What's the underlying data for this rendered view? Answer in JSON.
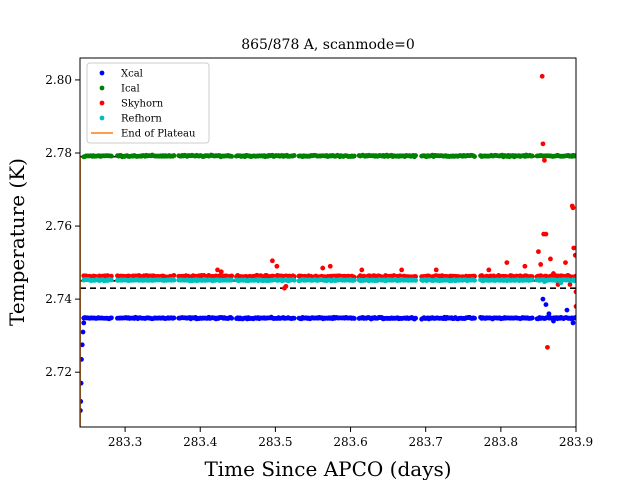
{
  "chart_data": {
    "type": "scatter",
    "title": "865/878 A, scanmode=0",
    "xlabel": "Time Since APCO (days)",
    "ylabel": "Temperature (K)",
    "xlim": [
      283.24,
      283.9
    ],
    "ylim": [
      2.705,
      2.806
    ],
    "xticks": [
      283.3,
      283.4,
      283.5,
      283.6,
      283.7,
      283.8,
      283.9
    ],
    "xtick_labels": [
      "283.3",
      "283.4",
      "283.5",
      "283.6",
      "283.7",
      "283.8",
      "283.9"
    ],
    "yticks": [
      2.72,
      2.74,
      2.76,
      2.78,
      2.8
    ],
    "ytick_labels": [
      "2.72",
      "2.74",
      "2.76",
      "2.78",
      "2.80"
    ],
    "grid": false,
    "legend_position": "top-left",
    "scan_gaps": [
      [
        283.283,
        283.289
      ],
      [
        283.365,
        283.37
      ],
      [
        283.442,
        283.448
      ],
      [
        283.526,
        283.531
      ],
      [
        283.605,
        283.611
      ],
      [
        283.687,
        283.693
      ],
      [
        283.766,
        283.772
      ],
      [
        283.842,
        283.847
      ]
    ],
    "reference_lines": [
      {
        "y": 2.779,
        "style": "dashed",
        "color": "#000000"
      },
      {
        "y": 2.745,
        "style": "dashed",
        "color": "#000000"
      },
      {
        "y": 2.743,
        "style": "dashed",
        "color": "#000000"
      }
    ],
    "series": [
      {
        "name": "Xcal",
        "color": "#0000ff",
        "baseline": 2.7348,
        "noise": 0.0003,
        "startup_points": [
          [
            283.2405,
            2.7095
          ],
          [
            283.241,
            2.712
          ],
          [
            283.2415,
            2.717
          ],
          [
            283.242,
            2.7235
          ],
          [
            283.243,
            2.7275
          ],
          [
            283.244,
            2.731
          ],
          [
            283.245,
            2.7335
          ]
        ],
        "outliers": [
          [
            283.856,
            2.74
          ],
          [
            283.86,
            2.7385
          ],
          [
            283.864,
            2.736
          ],
          [
            283.87,
            2.734
          ],
          [
            283.88,
            2.735
          ],
          [
            283.888,
            2.737
          ],
          [
            283.896,
            2.7335
          ],
          [
            283.9,
            2.735
          ]
        ]
      },
      {
        "name": "Ical",
        "color": "#008000",
        "baseline": 2.7792,
        "noise": 0.0003,
        "startup_points": [],
        "outliers": []
      },
      {
        "name": "Skyhorn",
        "color": "#ff0000",
        "baseline": 2.7462,
        "noise": 0.0004,
        "startup_points": [],
        "outliers": [
          [
            283.423,
            2.748
          ],
          [
            283.428,
            2.7475
          ],
          [
            283.496,
            2.7505
          ],
          [
            283.502,
            2.749
          ],
          [
            283.512,
            2.743
          ],
          [
            283.514,
            2.7435
          ],
          [
            283.563,
            2.7485
          ],
          [
            283.573,
            2.749
          ],
          [
            283.615,
            2.748
          ],
          [
            283.668,
            2.748
          ],
          [
            283.714,
            2.748
          ],
          [
            283.784,
            2.748
          ],
          [
            283.808,
            2.75
          ],
          [
            283.832,
            2.749
          ],
          [
            283.85,
            2.753
          ],
          [
            283.853,
            2.7495
          ],
          [
            283.855,
            2.801
          ],
          [
            283.856,
            2.7825
          ],
          [
            283.857,
            2.7578
          ],
          [
            283.858,
            2.778
          ],
          [
            283.86,
            2.7578
          ],
          [
            283.862,
            2.7268
          ],
          [
            283.866,
            2.751
          ],
          [
            283.87,
            2.747
          ],
          [
            283.876,
            2.744
          ],
          [
            283.886,
            2.75
          ],
          [
            283.889,
            2.7465
          ],
          [
            283.892,
            2.744
          ],
          [
            283.895,
            2.7655
          ],
          [
            283.896,
            2.765
          ],
          [
            283.897,
            2.754
          ],
          [
            283.899,
            2.752
          ],
          [
            283.9,
            2.742
          ],
          [
            283.9,
            2.738
          ]
        ]
      },
      {
        "name": "Refhorn",
        "color": "#00bfbf",
        "baseline": 2.7452,
        "noise": 0.00025,
        "startup_points": [],
        "outliers": [
          [
            283.858,
            2.7448
          ],
          [
            283.88,
            2.7445
          ]
        ]
      },
      {
        "name": "End of Plateau",
        "color": "#ff7f0e",
        "type": "line",
        "points": [
          [
            283.2402,
            2.779
          ],
          [
            283.2402,
            2.705
          ]
        ]
      }
    ]
  }
}
